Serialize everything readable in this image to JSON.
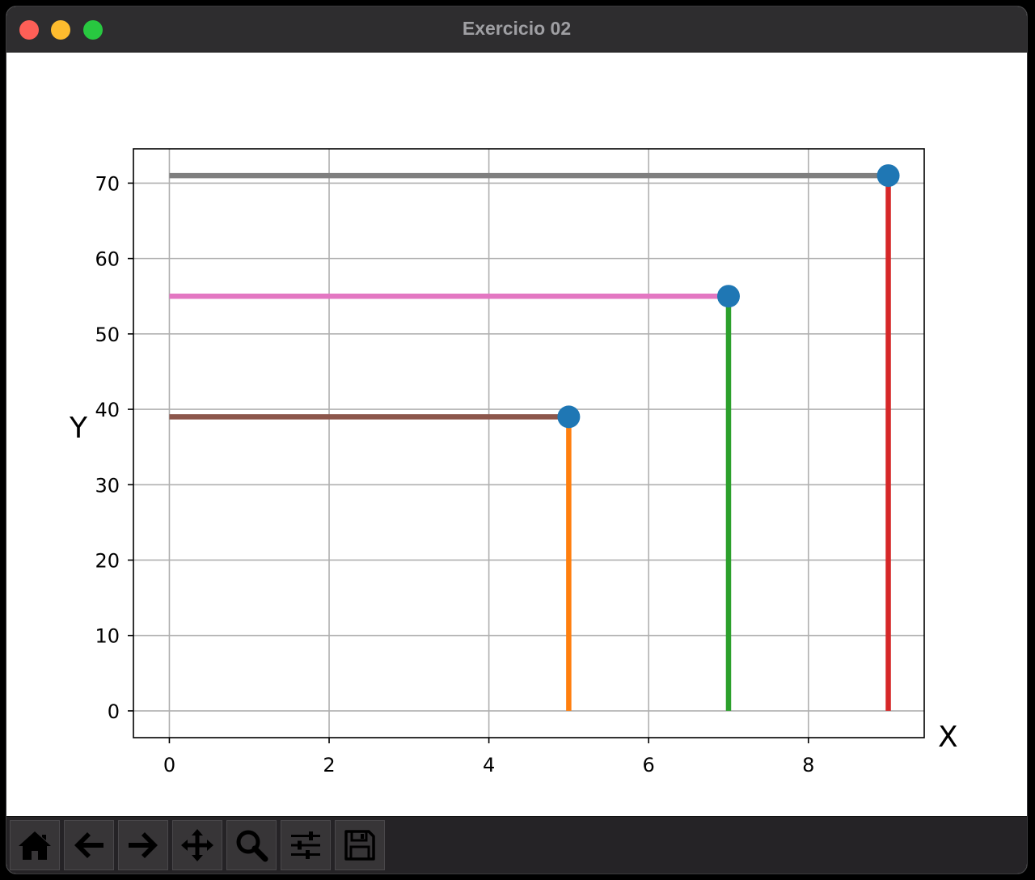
{
  "window": {
    "title": "Exercicio 02"
  },
  "chart_data": {
    "type": "line",
    "xlabel": "X",
    "ylabel": "Y",
    "xlim": [
      -0.45,
      9.45
    ],
    "ylim": [
      -3.55,
      74.55
    ],
    "xticks": [
      0,
      2,
      4,
      6,
      8
    ],
    "yticks": [
      0,
      10,
      20,
      30,
      40,
      50,
      60,
      70
    ],
    "grid": true,
    "points": {
      "x": [
        5,
        7,
        9
      ],
      "y": [
        39,
        55,
        71
      ],
      "color": "#1f77b4"
    },
    "series": [
      {
        "x": [
          5,
          5
        ],
        "y": [
          0,
          39
        ],
        "color": "#ff7f0e"
      },
      {
        "x": [
          7,
          7
        ],
        "y": [
          0,
          55
        ],
        "color": "#2ca02c"
      },
      {
        "x": [
          9,
          9
        ],
        "y": [
          0,
          71
        ],
        "color": "#d62728"
      },
      {
        "x": [
          0,
          5
        ],
        "y": [
          39,
          39
        ],
        "color": "#8c564b"
      },
      {
        "x": [
          0,
          7
        ],
        "y": [
          55,
          55
        ],
        "color": "#e377c2"
      },
      {
        "x": [
          0,
          9
        ],
        "y": [
          71,
          71
        ],
        "color": "#7f7f7f"
      }
    ]
  },
  "toolbar": {
    "buttons": [
      {
        "icon": "home-icon"
      },
      {
        "icon": "back-arrow-icon"
      },
      {
        "icon": "forward-arrow-icon"
      },
      {
        "icon": "pan-move-icon"
      },
      {
        "icon": "zoom-magnifier-icon"
      },
      {
        "icon": "configure-subplots-icon"
      },
      {
        "icon": "save-disk-icon"
      }
    ]
  }
}
